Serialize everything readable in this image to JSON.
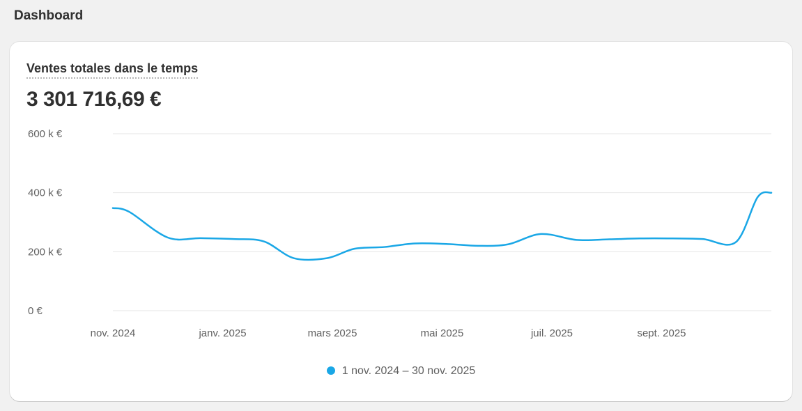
{
  "page": {
    "title": "Dashboard"
  },
  "card": {
    "title": "Ventes totales dans le temps",
    "total": "3 301 716,69 €"
  },
  "colors": {
    "series": "#1aa7e6",
    "grid": "#e6e6e6",
    "axis_text": "#616161"
  },
  "chart_data": {
    "type": "line",
    "title": "Ventes totales dans le temps",
    "ylim": [
      0,
      600000
    ],
    "y_ticks": [
      {
        "value": 0,
        "label": "0 €"
      },
      {
        "value": 200000,
        "label": "200 k €"
      },
      {
        "value": 400000,
        "label": "400 k €"
      },
      {
        "value": 600000,
        "label": "600 k €"
      }
    ],
    "x_ticks": [
      {
        "value": 0,
        "label": "nov. 2024"
      },
      {
        "value": 2,
        "label": "janv. 2025"
      },
      {
        "value": 4,
        "label": "mars 2025"
      },
      {
        "value": 6,
        "label": "mai 2025"
      },
      {
        "value": 8,
        "label": "juil. 2025"
      },
      {
        "value": 10,
        "label": "sept. 2025"
      }
    ],
    "xlim": [
      0,
      12
    ],
    "grid": true,
    "legend_position": "bottom-center",
    "series": [
      {
        "name": "1 nov. 2024 – 30 nov. 2025",
        "color": "#1aa7e6",
        "x": [
          0,
          0.3,
          1,
          1.6,
          2.2,
          2.75,
          3.3,
          3.9,
          4.4,
          4.95,
          5.5,
          6.1,
          6.65,
          7.2,
          7.8,
          8.45,
          9.05,
          9.6,
          10.2,
          10.75,
          11.35,
          11.75,
          12
        ],
        "values": [
          348000,
          335000,
          248000,
          246000,
          243000,
          235000,
          178000,
          178000,
          210000,
          216000,
          228000,
          226000,
          220000,
          225000,
          260000,
          240000,
          242000,
          245000,
          245000,
          243000,
          232000,
          385000,
          400000
        ]
      }
    ]
  }
}
